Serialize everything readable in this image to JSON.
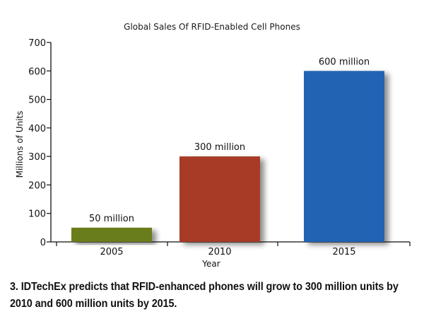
{
  "chart_data": {
    "type": "bar",
    "title": "Global Sales Of RFID-Enabled Cell Phones",
    "xlabel": "Year",
    "ylabel": "Millions of Units",
    "categories": [
      "2005",
      "2010",
      "2015"
    ],
    "values": [
      50,
      300,
      600
    ],
    "data_labels": [
      "50 million",
      "300 million",
      "600 million"
    ],
    "colors": [
      "#6b7d1f",
      "#a83a26",
      "#2063b4"
    ],
    "ylim": [
      0,
      700
    ],
    "yticks": [
      0,
      100,
      200,
      300,
      400,
      500,
      600,
      700
    ],
    "grid": false,
    "legend": "none"
  },
  "caption": {
    "text": "3. IDTechEx predicts that RFID-enhanced phones will grow to 300 million units by 2010 and 600 million units by 2015."
  }
}
